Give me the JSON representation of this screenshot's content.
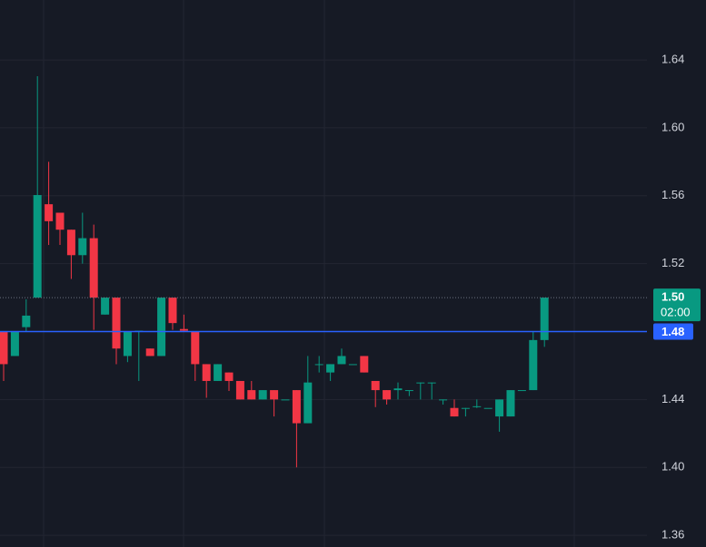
{
  "chart_data": {
    "type": "candlestick",
    "categories": [
      null,
      null,
      null,
      null,
      null,
      null,
      null,
      null,
      null,
      null,
      null,
      null,
      null,
      null,
      null,
      null,
      null,
      null,
      null,
      null,
      null,
      null,
      null,
      null,
      null,
      null,
      null,
      null,
      null,
      null,
      null,
      null,
      null,
      null,
      null,
      null,
      null,
      null,
      null,
      null,
      null,
      null,
      null,
      null,
      null,
      null,
      null,
      null,
      null
    ],
    "open": [
      1.48,
      1.4656,
      1.4826,
      1.5,
      1.555,
      1.55,
      1.54,
      1.525,
      1.535,
      1.49,
      1.5,
      1.4656,
      1.48,
      1.47,
      1.4656,
      1.5,
      1.4815,
      1.48,
      1.4608,
      1.4509,
      1.4559,
      1.4509,
      1.4455,
      1.44,
      1.4455,
      1.44,
      1.4455,
      1.426,
      1.4608,
      1.4559,
      1.4608,
      1.4608,
      1.4656,
      1.4509,
      1.4455,
      1.4455,
      1.4455,
      1.45,
      1.45,
      1.44,
      1.435,
      1.435,
      1.436,
      1.435,
      1.43,
      1.43,
      1.4455,
      1.4455,
      1.475
    ],
    "high": [
      1.48,
      1.48,
      1.499,
      1.6304,
      1.58,
      1.55,
      1.54,
      1.55,
      1.543,
      1.5,
      1.5,
      1.48,
      1.48,
      1.47,
      1.5,
      1.5,
      1.49,
      1.48,
      1.4608,
      1.4608,
      1.4559,
      1.4509,
      1.4509,
      1.4455,
      1.4455,
      1.44,
      1.4455,
      1.4656,
      1.4656,
      1.4608,
      1.47,
      1.4608,
      1.4656,
      1.4509,
      1.4455,
      1.45,
      1.4455,
      1.45,
      1.45,
      1.44,
      1.44,
      1.435,
      1.44,
      1.435,
      1.44,
      1.4455,
      1.4455,
      1.48,
      1.5
    ],
    "low": [
      1.4509,
      1.4656,
      1.48,
      1.5,
      1.531,
      1.531,
      1.511,
      1.52,
      1.481,
      1.49,
      1.4608,
      1.462,
      1.4509,
      1.4656,
      1.4656,
      1.481,
      1.48,
      1.4509,
      1.441,
      1.4509,
      1.445,
      1.44,
      1.44,
      1.44,
      1.43,
      1.44,
      1.4,
      1.426,
      1.4559,
      1.4509,
      1.4608,
      1.4608,
      1.4559,
      1.4355,
      1.437,
      1.44,
      1.442,
      1.44,
      1.44,
      1.437,
      1.43,
      1.43,
      1.435,
      1.435,
      1.421,
      1.43,
      1.4455,
      1.4455,
      1.471
    ],
    "close": [
      1.4608,
      1.48,
      1.4894,
      1.5604,
      1.545,
      1.54,
      1.525,
      1.535,
      1.5,
      1.5,
      1.47,
      1.48,
      1.4805,
      1.4656,
      1.5,
      1.485,
      1.4805,
      1.4608,
      1.4509,
      1.4608,
      1.4509,
      1.44,
      1.44,
      1.4455,
      1.44,
      1.44,
      1.426,
      1.45,
      1.4608,
      1.4608,
      1.4656,
      1.4608,
      1.4559,
      1.4455,
      1.44,
      1.4465,
      1.4455,
      1.45,
      1.45,
      1.44,
      1.43,
      1.435,
      1.436,
      1.435,
      1.44,
      1.4455,
      1.4455,
      1.475,
      1.5
    ],
    "up_color": "#089981",
    "down_color": "#f23645",
    "ylim": [
      1.3531,
      1.6753
    ],
    "yticks": [
      1.36,
      {
        "value": 1.4,
        "label": "1.40"
      },
      1.44,
      1.48,
      1.52,
      1.56,
      {
        "value": 1.6,
        "label": "1.60"
      },
      1.64
    ],
    "grid": true,
    "last_price": {
      "value": 1.5,
      "label": "1.50",
      "countdown": "02:00",
      "color": "#089981"
    },
    "price_line": {
      "value": 1.48,
      "label": "1.48",
      "color": "#2962ff"
    }
  }
}
